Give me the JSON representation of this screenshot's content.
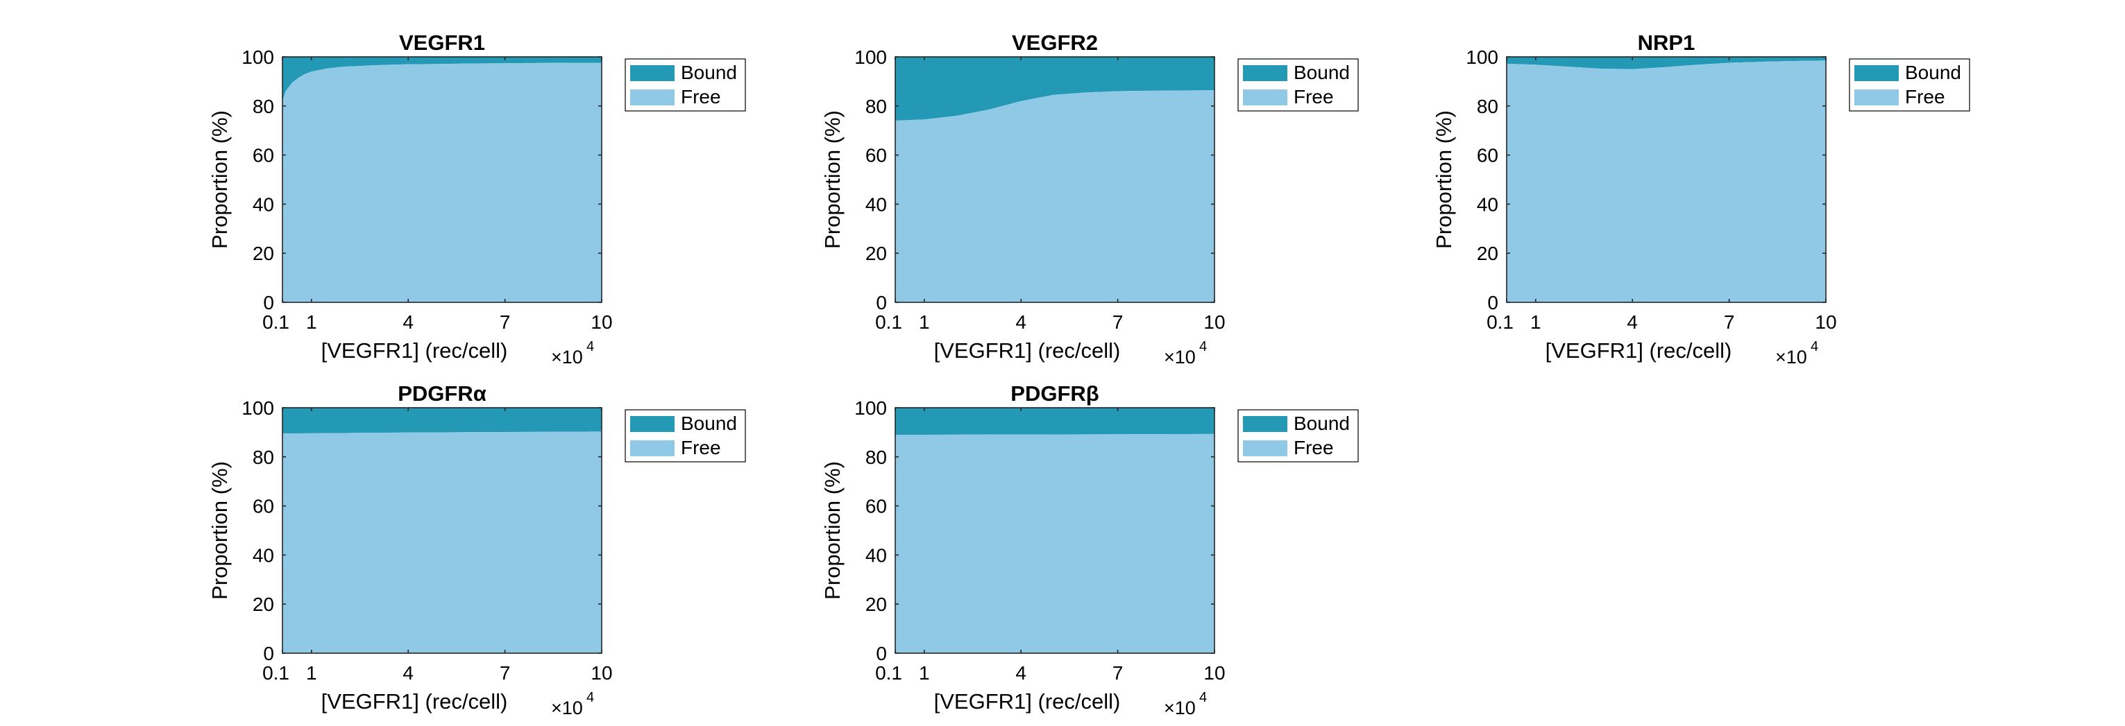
{
  "chart_data": [
    {
      "type": "area",
      "title": "VEGFR1",
      "xlabel": "[VEGFR1] (rec/cell)",
      "x_multiplier": "×10",
      "x_multiplier_exp": "4",
      "ylabel": "Proportion (%)",
      "xlim": [
        0.1,
        10
      ],
      "ylim": [
        0,
        100
      ],
      "x_ticks": [
        0.1,
        1,
        4,
        7,
        10
      ],
      "x_tick_labels": [
        "0.1",
        "1",
        "4",
        "7",
        "10"
      ],
      "y_ticks": [
        0,
        20,
        40,
        60,
        80,
        100
      ],
      "y_tick_labels": [
        "0",
        "20",
        "40",
        "60",
        "80",
        "100"
      ],
      "legend": [
        "Bound",
        "Free"
      ],
      "legend_position": "outside right",
      "x": [
        0.1,
        0.2,
        0.4,
        0.6,
        0.8,
        1,
        1.5,
        2,
        3,
        4,
        5,
        6,
        7,
        8,
        9,
        10
      ],
      "series": [
        {
          "name": "Free",
          "values": [
            82,
            86,
            89.5,
            91.5,
            93,
            94,
            95.3,
            96,
            96.6,
            97,
            97.1,
            97.3,
            97.4,
            97.5,
            97.6,
            97.6
          ]
        },
        {
          "name": "Bound",
          "values": [
            18,
            14,
            10.5,
            8.5,
            7,
            6,
            4.7,
            4,
            3.4,
            3,
            2.9,
            2.7,
            2.6,
            2.5,
            2.4,
            2.4
          ]
        }
      ]
    },
    {
      "type": "area",
      "title": "VEGFR2",
      "xlabel": "[VEGFR1] (rec/cell)",
      "x_multiplier": "×10",
      "x_multiplier_exp": "4",
      "ylabel": "Proportion (%)",
      "xlim": [
        0.1,
        10
      ],
      "ylim": [
        0,
        100
      ],
      "x_ticks": [
        0.1,
        1,
        4,
        7,
        10
      ],
      "x_tick_labels": [
        "0.1",
        "1",
        "4",
        "7",
        "10"
      ],
      "y_ticks": [
        0,
        20,
        40,
        60,
        80,
        100
      ],
      "y_tick_labels": [
        "0",
        "20",
        "40",
        "60",
        "80",
        "100"
      ],
      "legend": [
        "Bound",
        "Free"
      ],
      "legend_position": "outside right",
      "x": [
        0.1,
        1,
        2,
        3,
        4,
        5,
        6,
        7,
        8,
        9,
        10
      ],
      "series": [
        {
          "name": "Free",
          "values": [
            74,
            74.5,
            76,
            78.5,
            82,
            84.5,
            85.5,
            86,
            86.2,
            86.3,
            86.4
          ]
        },
        {
          "name": "Bound",
          "values": [
            26,
            25.5,
            24,
            21.5,
            18,
            15.5,
            14.5,
            14,
            13.8,
            13.7,
            13.6
          ]
        }
      ]
    },
    {
      "type": "area",
      "title": "NRP1",
      "xlabel": "[VEGFR1] (rec/cell)",
      "x_multiplier": "×10",
      "x_multiplier_exp": "4",
      "ylabel": "Proportion (%)",
      "xlim": [
        0.1,
        10
      ],
      "ylim": [
        0,
        100
      ],
      "x_ticks": [
        0.1,
        1,
        4,
        7,
        10
      ],
      "x_tick_labels": [
        "0.1",
        "1",
        "4",
        "7",
        "10"
      ],
      "y_ticks": [
        0,
        20,
        40,
        60,
        80,
        100
      ],
      "y_tick_labels": [
        "0",
        "20",
        "40",
        "60",
        "80",
        "100"
      ],
      "legend": [
        "Bound",
        "Free"
      ],
      "legend_position": "outside right",
      "x": [
        0.1,
        1,
        2,
        3,
        4,
        5,
        6,
        7,
        8,
        9,
        10
      ],
      "series": [
        {
          "name": "Free",
          "values": [
            97.2,
            96.8,
            96,
            95.2,
            95,
            95.8,
            96.8,
            97.6,
            98,
            98.3,
            98.5
          ]
        },
        {
          "name": "Bound",
          "values": [
            2.8,
            3.2,
            4,
            4.8,
            5,
            4.2,
            3.2,
            2.4,
            2,
            1.7,
            1.5
          ]
        }
      ]
    },
    {
      "type": "area",
      "title": "PDGFRα",
      "xlabel": "[VEGFR1] (rec/cell)",
      "x_multiplier": "×10",
      "x_multiplier_exp": "4",
      "ylabel": "Proportion (%)",
      "xlim": [
        0.1,
        10
      ],
      "ylim": [
        0,
        100
      ],
      "x_ticks": [
        0.1,
        1,
        4,
        7,
        10
      ],
      "x_tick_labels": [
        "0.1",
        "1",
        "4",
        "7",
        "10"
      ],
      "y_ticks": [
        0,
        20,
        40,
        60,
        80,
        100
      ],
      "y_tick_labels": [
        "0",
        "20",
        "40",
        "60",
        "80",
        "100"
      ],
      "legend": [
        "Bound",
        "Free"
      ],
      "legend_position": "outside right",
      "x": [
        0.1,
        1,
        4,
        7,
        10
      ],
      "series": [
        {
          "name": "Free",
          "values": [
            89.5,
            89.6,
            89.9,
            90.1,
            90.3
          ]
        },
        {
          "name": "Bound",
          "values": [
            10.5,
            10.4,
            10.1,
            9.9,
            9.7
          ]
        }
      ]
    },
    {
      "type": "area",
      "title": "PDGFRβ",
      "xlabel": "[VEGFR1] (rec/cell)",
      "x_multiplier": "×10",
      "x_multiplier_exp": "4",
      "ylabel": "Proportion (%)",
      "xlim": [
        0.1,
        10
      ],
      "ylim": [
        0,
        100
      ],
      "x_ticks": [
        0.1,
        1,
        4,
        7,
        10
      ],
      "x_tick_labels": [
        "0.1",
        "1",
        "4",
        "7",
        "10"
      ],
      "y_ticks": [
        0,
        20,
        40,
        60,
        80,
        100
      ],
      "y_tick_labels": [
        "0",
        "20",
        "40",
        "60",
        "80",
        "100"
      ],
      "legend": [
        "Bound",
        "Free"
      ],
      "legend_position": "outside right",
      "x": [
        0.1,
        1,
        4,
        7,
        10
      ],
      "series": [
        {
          "name": "Free",
          "values": [
            89,
            89,
            89.1,
            89.2,
            89.3
          ]
        },
        {
          "name": "Bound",
          "values": [
            11,
            11,
            10.9,
            10.8,
            10.7
          ]
        }
      ]
    }
  ],
  "colors": {
    "bound": "#2499b6",
    "free": "#90c9e6",
    "axis": "#262626",
    "text": "#000000"
  }
}
